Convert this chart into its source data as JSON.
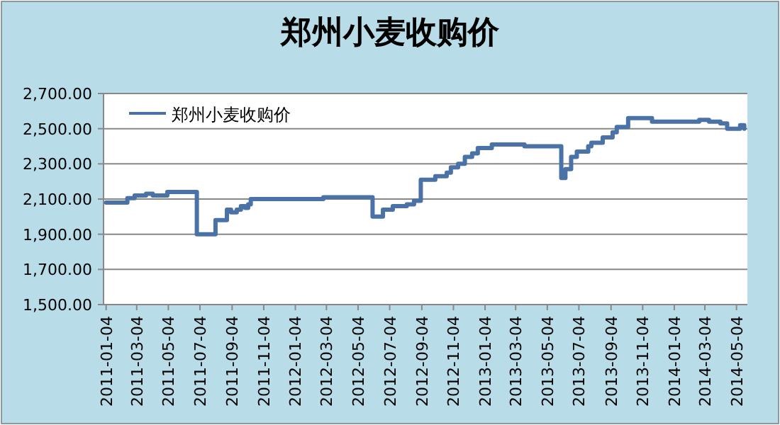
{
  "chart_data": {
    "type": "step",
    "title": "郑州小麦收购价",
    "series": [
      {
        "name": "郑州小麦收购价",
        "color": "#4a72a6",
        "x": [
          "2011-01-04",
          "2011-02-14",
          "2011-02-28",
          "2011-03-22",
          "2011-04-04",
          "2011-05-02",
          "2011-06-28",
          "2011-08-03",
          "2011-08-25",
          "2011-09-02",
          "2011-09-13",
          "2011-09-21",
          "2011-09-29",
          "2011-10-05",
          "2011-10-10",
          "2012-02-27",
          "2012-06-01",
          "2012-06-21",
          "2012-07-10",
          "2012-08-06",
          "2012-08-20",
          "2012-09-02",
          "2012-09-30",
          "2012-10-22",
          "2012-10-30",
          "2012-11-13",
          "2012-11-26",
          "2012-12-10",
          "2012-12-21",
          "2013-01-17",
          "2013-03-21",
          "2013-05-31",
          "2013-06-08",
          "2013-06-19",
          "2013-06-30",
          "2013-07-22",
          "2013-07-28",
          "2013-08-19",
          "2013-09-07",
          "2013-09-15",
          "2013-10-07",
          "2013-11-22",
          "2014-02-21",
          "2014-03-12",
          "2014-04-03",
          "2014-04-16",
          "2014-05-11",
          "2014-05-19"
        ],
        "values": [
          2080,
          2105,
          2120,
          2130,
          2120,
          2140,
          1900,
          1980,
          2040,
          2025,
          2040,
          2060,
          2050,
          2070,
          2100,
          2110,
          2000,
          2040,
          2060,
          2070,
          2090,
          2210,
          2230,
          2250,
          2280,
          2300,
          2340,
          2360,
          2390,
          2410,
          2400,
          2220,
          2270,
          2340,
          2370,
          2400,
          2420,
          2450,
          2480,
          2510,
          2560,
          2540,
          2550,
          2540,
          2530,
          2500,
          2520,
          2500
        ]
      }
    ],
    "xlim": [
      "2010-12-30",
      "2014-05-25"
    ],
    "xticks": [
      "2011-01-04",
      "2011-03-04",
      "2011-05-04",
      "2011-07-04",
      "2011-09-04",
      "2011-11-04",
      "2012-01-04",
      "2012-03-04",
      "2012-05-04",
      "2012-07-04",
      "2012-09-04",
      "2012-11-04",
      "2013-01-04",
      "2013-03-04",
      "2013-05-04",
      "2013-07-04",
      "2013-09-04",
      "2013-11-04",
      "2014-01-04",
      "2014-03-04",
      "2014-05-04"
    ],
    "ylim": [
      1500,
      2700
    ],
    "yticks": [
      {
        "value": 1500,
        "label": "1,500.00"
      },
      {
        "value": 1700,
        "label": "1,700.00"
      },
      {
        "value": 1900,
        "label": "1,900.00"
      },
      {
        "value": 2100,
        "label": "2,100.00"
      },
      {
        "value": 2300,
        "label": "2,300.00"
      },
      {
        "value": 2500,
        "label": "2,500.00"
      },
      {
        "value": 2700,
        "label": "2,700.00"
      }
    ],
    "grid": "y",
    "legend": "top left",
    "line_style": "solid",
    "marker": "none"
  }
}
